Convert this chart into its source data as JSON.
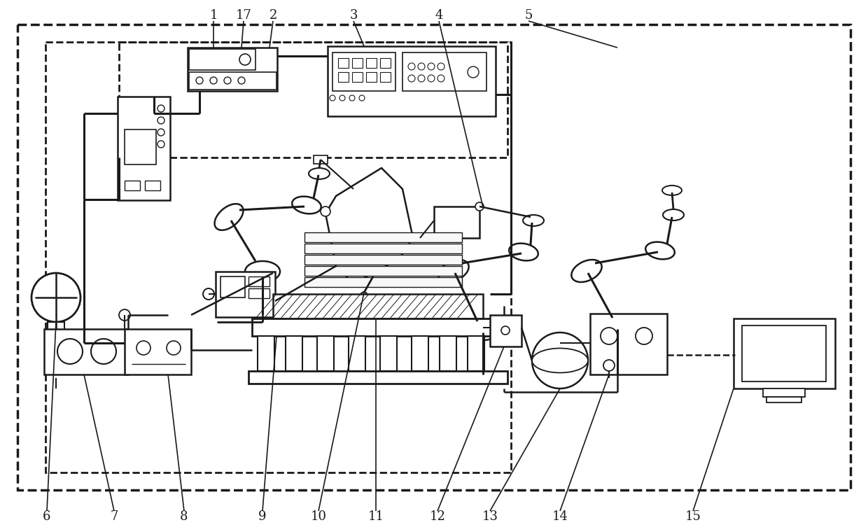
{
  "bg_color": "#ffffff",
  "lc": "#1a1a1a",
  "lw_main": 2.0,
  "lw_thin": 1.2,
  "lw_thick": 2.5,
  "dash_lw": 2.0,
  "fontsize": 13
}
